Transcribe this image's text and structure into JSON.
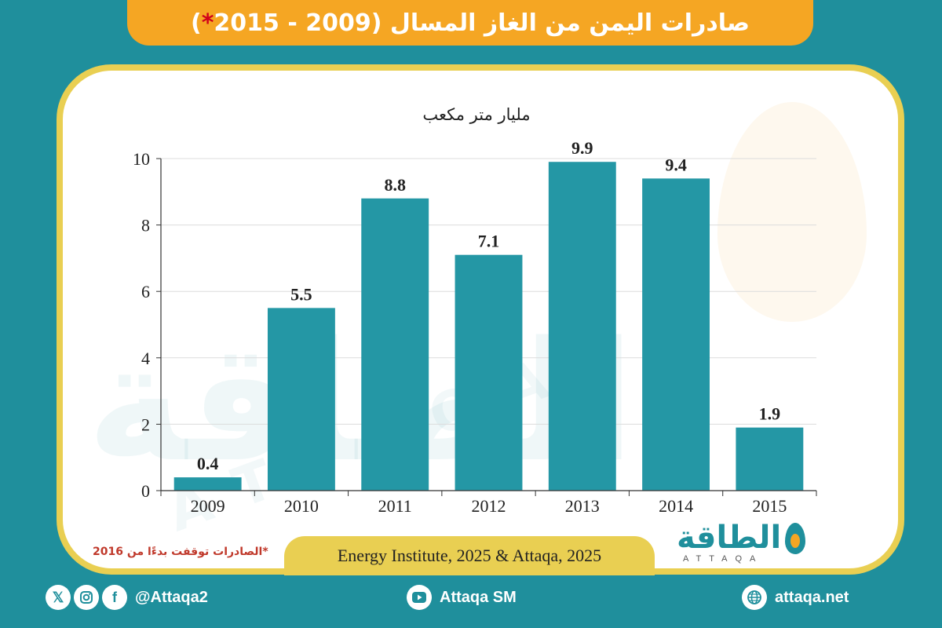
{
  "header": {
    "title": "صادرات اليمن من الغاز المسال (2009 - 2015",
    "title_star": "*",
    "title_close": ")"
  },
  "chart_data": {
    "type": "bar",
    "title": "صادرات اليمن من الغاز المسال (2009 - 2015*)",
    "ylabel": "مليار متر مكعب",
    "xlabel": "",
    "categories": [
      "2009",
      "2010",
      "2011",
      "2012",
      "2013",
      "2014",
      "2015"
    ],
    "values": [
      0.4,
      5.5,
      8.8,
      7.1,
      9.9,
      9.4,
      1.9
    ],
    "value_labels": [
      "0.4",
      "5.5",
      "8.8",
      "7.1",
      "9.9",
      "9.4",
      "1.9"
    ],
    "ylim": [
      0,
      10
    ],
    "yticks": [
      0,
      2,
      4,
      6,
      8,
      10
    ],
    "grid": true,
    "bar_color": "#2497a5"
  },
  "footnote": "*الصادرات توقفت بدءًا من 2016",
  "source": "Energy Institute, 2025 & Attaqa, 2025",
  "brand": {
    "arabic": "الطاقة",
    "latin": "ATTAQA"
  },
  "footer": {
    "social_handle": "@Attaqa2",
    "youtube": "Attaqa SM",
    "website": "attaqa.net"
  },
  "colors": {
    "background": "#1f8f9c",
    "accent": "#f5a623",
    "frame": "#e9cf52",
    "footnote": "#c0392b"
  }
}
